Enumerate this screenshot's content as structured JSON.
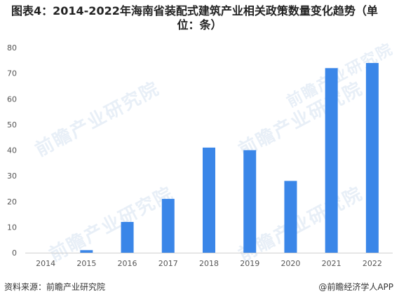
{
  "title": {
    "line1": "图表4：2014-2022年海南省装配式建筑产业相关政策数量变化趋势（单",
    "line2": "位：条）"
  },
  "footer": {
    "source": "资料来源：前瞻产业研究院",
    "brand": "@前瞻经济学人APP"
  },
  "watermark": "前瞻产业研究院",
  "colors": {
    "bar": "#3a86e8",
    "grid": "#e5e5e5",
    "axis": "#d0d0d0",
    "tick": "#555555"
  },
  "chart_data": {
    "type": "bar",
    "categories": [
      "2014",
      "2015",
      "2016",
      "2017",
      "2018",
      "2019",
      "2020",
      "2021",
      "2022"
    ],
    "values": [
      0,
      1,
      12,
      21,
      41,
      40,
      28,
      72,
      74
    ],
    "ylim": [
      0,
      80
    ],
    "yticks": [
      0,
      10,
      20,
      30,
      40,
      50,
      60,
      70,
      80
    ],
    "grid": false
  }
}
